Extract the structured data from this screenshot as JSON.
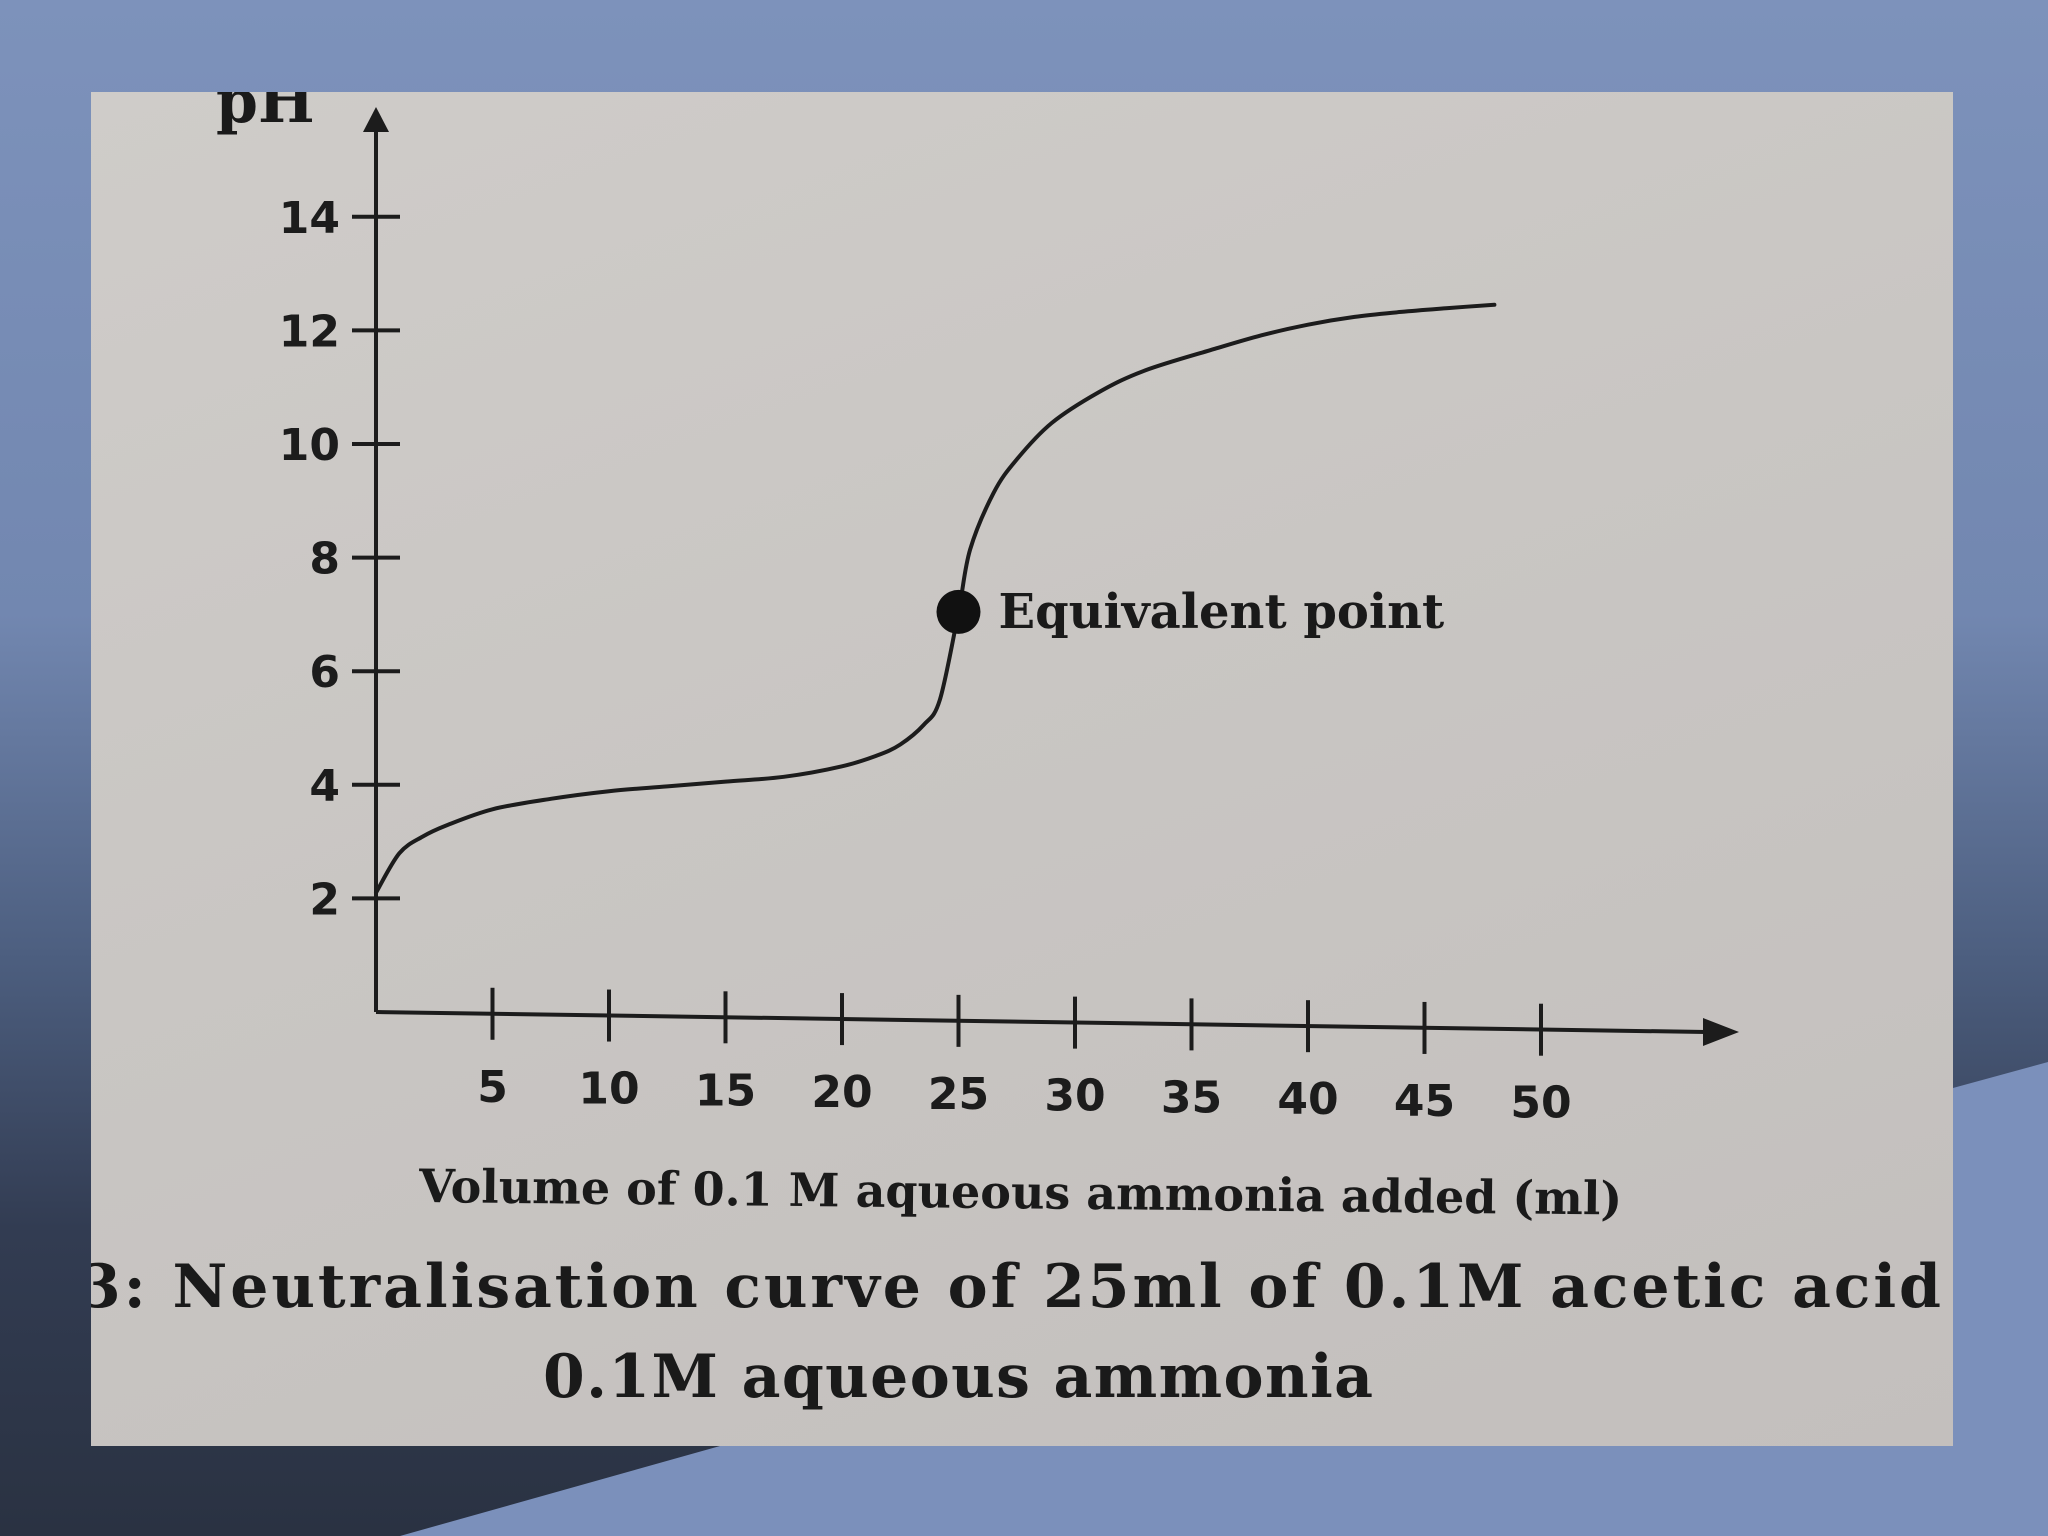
{
  "colors": {
    "ink": "#1c1c1c",
    "paper": "#cac7c4",
    "slide_blue": "#7b90bb",
    "slide_dark": "#2a3242"
  },
  "chart_data": {
    "type": "line",
    "title": "",
    "ylabel": "pH",
    "xlabel": "Volume of 0.1 M aqueous ammonia added (ml)",
    "xlim": [
      0,
      55
    ],
    "ylim": [
      0,
      15
    ],
    "x_ticks": [
      5,
      10,
      15,
      20,
      25,
      30,
      35,
      40,
      45,
      50
    ],
    "y_ticks": [
      2,
      4,
      6,
      8,
      10,
      12,
      14
    ],
    "x_tick_labels": [
      "5",
      "10",
      "15",
      "20",
      "25",
      "30",
      "35",
      "40",
      "45",
      "50"
    ],
    "y_tick_labels": [
      "2",
      "4",
      "6",
      "8",
      "10",
      "12",
      "14"
    ],
    "grid": false,
    "series": [
      {
        "x": [
          0,
          1,
          2,
          3,
          5,
          7.5,
          10,
          12.5,
          15,
          17.5,
          20,
          21.5,
          22.5,
          23.5,
          24.2,
          25,
          25.5,
          26.5,
          27.5,
          29,
          31,
          33,
          36,
          38,
          40,
          42,
          44,
          46,
          48
        ],
        "y": [
          2.1,
          2.8,
          3.1,
          3.3,
          3.6,
          3.8,
          3.95,
          4.05,
          4.15,
          4.25,
          4.45,
          4.65,
          4.85,
          5.2,
          5.65,
          7.2,
          8.3,
          9.3,
          9.9,
          10.55,
          11.1,
          11.5,
          11.9,
          12.15,
          12.35,
          12.5,
          12.6,
          12.68,
          12.75
        ]
      }
    ],
    "annotations": [
      {
        "label": "Equivalent point",
        "x": 25,
        "y": 7.2
      }
    ]
  },
  "caption": {
    "line1": "3: Neutralisation curve of 25ml of 0.1M acetic acid",
    "line2": "0.1M aqueous ammonia"
  }
}
